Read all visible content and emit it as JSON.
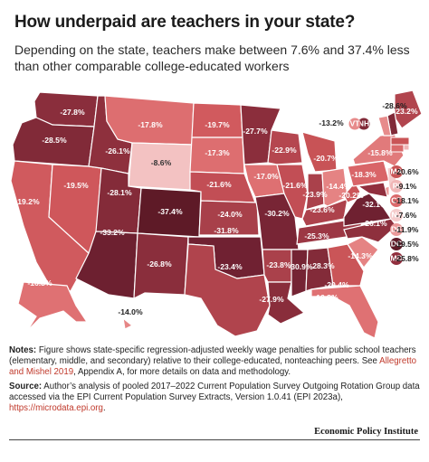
{
  "title": "How underpaid are teachers in your state?",
  "subtitle": "Depending on the state, teachers make between 7.6% and 37.4% less than other comparable college-educated workers",
  "states": [
    {
      "code": "WA",
      "value": "-27.8%",
      "color": "#8a2e3c"
    },
    {
      "code": "OR",
      "value": "-28.5%",
      "color": "#812a38",
      "lcolor": "#ffffff"
    },
    {
      "code": "CA",
      "value": "-19.2%",
      "color": "#d05a5e"
    },
    {
      "code": "NV",
      "value": "-19.5%",
      "color": "#cf575b"
    },
    {
      "code": "ID",
      "value": "-26.1%",
      "color": "#8e303d"
    },
    {
      "code": "MT",
      "value": "-17.8%",
      "color": "#dd6e70"
    },
    {
      "code": "WY",
      "value": "-8.6%",
      "color": "#f3c2c2",
      "lcolor": "#333333"
    },
    {
      "code": "UT",
      "value": "-28.1%",
      "color": "#842b39"
    },
    {
      "code": "CO",
      "value": "-37.4%",
      "color": "#5e1a27"
    },
    {
      "code": "AZ",
      "value": "-33.2%",
      "color": "#6d2030"
    },
    {
      "code": "NM",
      "value": "-26.8%",
      "color": "#8a2e3c"
    },
    {
      "code": "ND",
      "value": "-19.7%",
      "color": "#d15a5e"
    },
    {
      "code": "SD",
      "value": "-17.3%",
      "color": "#dd6e70"
    },
    {
      "code": "NE",
      "value": "-21.6%",
      "color": "#c24e55"
    },
    {
      "code": "KS",
      "value": "-24.0%",
      "color": "#a8404a"
    },
    {
      "code": "OK",
      "value": "-31.8%",
      "color": "#702132"
    },
    {
      "code": "TX",
      "value": "-23.4%",
      "color": "#b0444d"
    },
    {
      "code": "MN",
      "value": "-27.7%",
      "color": "#8b2e3c"
    },
    {
      "code": "IA",
      "value": "-17.0%",
      "color": "#de7072"
    },
    {
      "code": "MO",
      "value": "-30.2%",
      "color": "#782535"
    },
    {
      "code": "AR",
      "value": "-23.8%",
      "color": "#aa414b"
    },
    {
      "code": "LA",
      "value": "-27.9%",
      "color": "#892d3b"
    },
    {
      "code": "WI",
      "value": "-22.9%",
      "color": "#b5464f"
    },
    {
      "code": "IL",
      "value": "-21.6%",
      "color": "#c24e55"
    },
    {
      "code": "MI",
      "value": "-20.7%",
      "color": "#c85356"
    },
    {
      "code": "IN",
      "value": "-23.9%",
      "color": "#aa414b"
    },
    {
      "code": "OH",
      "value": "-14.4%",
      "color": "#e58383"
    },
    {
      "code": "KY",
      "value": "-23.6%",
      "color": "#ad424c"
    },
    {
      "code": "TN",
      "value": "-25.3%",
      "color": "#9c3744"
    },
    {
      "code": "MS",
      "value": "-30.9%",
      "color": "#752434"
    },
    {
      "code": "AL",
      "value": "-28.3%",
      "color": "#832b39"
    },
    {
      "code": "GA",
      "value": "-20.4%",
      "color": "#ca5558"
    },
    {
      "code": "FL",
      "value": "-16.8%",
      "color": "#df7173"
    },
    {
      "code": "SC",
      "value": "-14.3%",
      "color": "#e58383"
    },
    {
      "code": "NC",
      "value": "-26.1%",
      "color": "#8e303d"
    },
    {
      "code": "VA",
      "value": "-32.1%",
      "color": "#6f2131"
    },
    {
      "code": "WV",
      "value": "-20.2%",
      "color": "#cb5558"
    },
    {
      "code": "PA",
      "value": "-18.3%",
      "color": "#d96568"
    },
    {
      "code": "NY",
      "value": "-15.8%",
      "color": "#e17a7b"
    },
    {
      "code": "ME",
      "value": "-23.2%",
      "color": "#b1454e"
    },
    {
      "code": "NH",
      "value": "-28.6%",
      "color": "#812a38"
    },
    {
      "code": "VT",
      "value": "-13.2%",
      "color": "#e78b8b"
    },
    {
      "code": "AK",
      "value": "-16.8%",
      "color": "#df7173"
    },
    {
      "code": "HI",
      "value": "-14.0%",
      "color": "#e68686"
    }
  ],
  "callouts": [
    {
      "code": "MA",
      "value": "-20.6%",
      "color": "#c95456"
    },
    {
      "code": "RI",
      "value": "-9.1%",
      "color": "#f0b6b6"
    },
    {
      "code": "CT",
      "value": "-18.1%",
      "color": "#da6a6b"
    },
    {
      "code": "NJ",
      "value": "-7.6%",
      "color": "#f5cccc"
    },
    {
      "code": "DE",
      "value": "-11.9%",
      "color": "#eb9a9a"
    },
    {
      "code": "DC",
      "value": "-19.5%",
      "color": "#5e1a27"
    },
    {
      "code": "MD",
      "value": "-25.8%",
      "color": "#912f3e"
    }
  ],
  "notes": {
    "notes_label": "Notes:",
    "notes_text": "Figure shows state-specific regression-adjusted weekly wage penalties for public school teachers (elementary, middle, and secondary) relative to their college-educated, nonteaching peers. See",
    "notes_link": "Allegretto and Mishel 2019",
    "notes_tail": ", Appendix A, for more details on data and methodology.",
    "source_label": "Source:",
    "source_text": "Author’s analysis of pooled 2017–2022 Current Population Survey Outgoing Rotation Group data accessed via the EPI Current Population Survey Extracts, Version 1.0.41 (EPI 2023a),",
    "source_link": "https://microdata.epi.org",
    "source_tail": "."
  },
  "brand": "Economic Policy Institute"
}
